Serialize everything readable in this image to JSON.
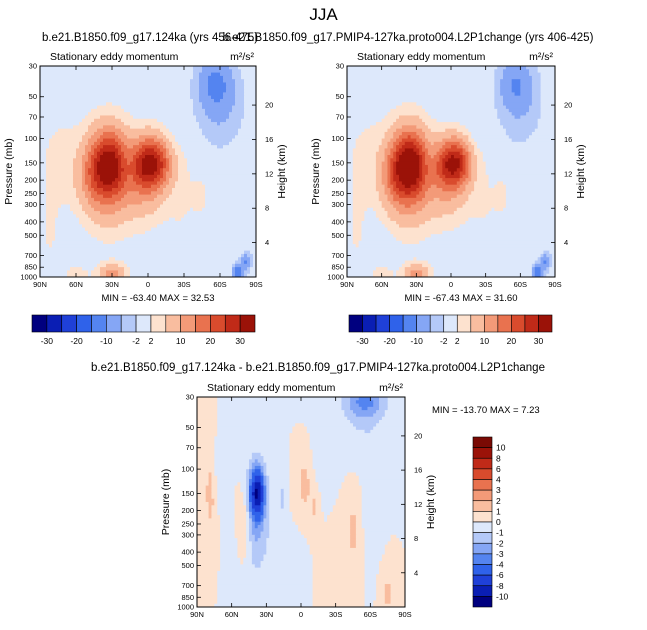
{
  "figure": {
    "main_title": "JJA",
    "panel_titles": [
      "b.e21.B1850.f09_g17.124ka (yrs 456-475)",
      "b.e21.B1850.f09_g17.PMIP4-127ka.proto004.L2P1change (yrs 406-425)",
      "b.e21.B1850.f09_g17.124ka - b.e21.B1850.f09_g17.PMIP4-127ka.proto004.L2P1change"
    ],
    "variable_label": "Stationary eddy momentum",
    "units": "m²/s²"
  },
  "colorbars": {
    "main": {
      "levels": [
        -30,
        -25,
        -20,
        -15,
        -10,
        -5,
        -2,
        2,
        5,
        10,
        15,
        20,
        25,
        30
      ],
      "tick_labels": [
        "-30",
        "-20",
        "-10",
        "-2",
        "2",
        "10",
        "20",
        "30"
      ],
      "colors": [
        "#00007f",
        "#0a1eb4",
        "#1f40d8",
        "#2f62ea",
        "#5484f0",
        "#85a6f5",
        "#b4c9f8",
        "#dde8fb",
        "#fde2cf",
        "#f9bd9f",
        "#f39a78",
        "#e9724f",
        "#d94b2d",
        "#c02a18",
        "#9b1208"
      ]
    },
    "diff": {
      "levels": [
        -10,
        -8,
        -6,
        -4,
        -3,
        -2,
        -1,
        0,
        1,
        2,
        3,
        4,
        6,
        8,
        10
      ],
      "tick_labels": [
        "10",
        "8",
        "6",
        "4",
        "3",
        "2",
        "1",
        "0",
        "-1",
        "-2",
        "-3",
        "-4",
        "-6",
        "-8",
        "-10"
      ],
      "colors": [
        "#00007f",
        "#0a1eb4",
        "#1f40d8",
        "#2f62ea",
        "#5484f0",
        "#85a6f5",
        "#b4c9f8",
        "#dde8fb",
        "#fde2cf",
        "#f9bd9f",
        "#f39a78",
        "#e9724f",
        "#d94b2d",
        "#c02a18",
        "#9b1208",
        "#7a0a04"
      ]
    }
  },
  "chart_data": [
    {
      "type": "heatmap",
      "title": "b.e21.B1850.f09_g17.124ka (yrs 456-475)",
      "subtitle": "Stationary eddy momentum",
      "units": "m²/s²",
      "xlabel": "",
      "ylabel": "Pressure (mb)",
      "y2label": "Height (km)",
      "x_ticks": [
        "90N",
        "60N",
        "30N",
        "0",
        "30S",
        "60S",
        "90S"
      ],
      "x_range": [
        90,
        -90
      ],
      "y_ticks": [
        30,
        50,
        70,
        100,
        150,
        200,
        250,
        300,
        400,
        500,
        700,
        850,
        1000
      ],
      "y_range": [
        1000,
        30
      ],
      "y2_ticks": [
        4,
        8,
        12,
        16,
        20
      ],
      "min": -63.4,
      "max": 32.53,
      "stats_text": "MIN = -63.40  MAX =  32.53",
      "colorbar": "main",
      "features": [
        {
          "lat": 33,
          "p": 150,
          "value": 22,
          "lat_w": 11,
          "p_w": 0.38
        },
        {
          "lat": 33,
          "p": 190,
          "value": 14,
          "lat_w": 13,
          "p_w": 0.55
        },
        {
          "lat": -3,
          "p": 150,
          "value": 28,
          "lat_w": 12,
          "p_w": 0.3
        },
        {
          "lat": 4,
          "p": 210,
          "value": 9,
          "lat_w": 13,
          "p_w": 0.45
        },
        {
          "lat": 48,
          "p": 200,
          "value": 6,
          "lat_w": 8,
          "p_w": 0.35
        },
        {
          "lat": 72,
          "p": 150,
          "value": 3,
          "lat_w": 14,
          "p_w": 0.6
        },
        {
          "lat": 30,
          "p": 950,
          "value": 12,
          "lat_w": 8,
          "p_w": 0.12
        },
        {
          "lat": 60,
          "p": 960,
          "value": 4,
          "lat_w": 7,
          "p_w": 0.1
        },
        {
          "lat": -56,
          "p": 40,
          "value": -9,
          "lat_w": 10,
          "p_w": 0.3
        },
        {
          "lat": -60,
          "p": 60,
          "value": -5,
          "lat_w": 14,
          "p_w": 0.5
        },
        {
          "lat": 16,
          "p": 150,
          "value": -5,
          "lat_w": 5,
          "p_w": 0.28
        },
        {
          "lat": -28,
          "p": 300,
          "value": 2,
          "lat_w": 10,
          "p_w": 0.5
        },
        {
          "lat": -45,
          "p": 250,
          "value": 2,
          "lat_w": 6,
          "p_w": 0.35
        },
        {
          "lat": 82,
          "p": 500,
          "value": 2,
          "lat_w": 6,
          "p_w": 0.5
        },
        {
          "lat": -75,
          "p": 920,
          "value": -14,
          "lat_w": 3,
          "p_w": 0.1
        },
        {
          "lat": -82,
          "p": 780,
          "value": -10,
          "lat_w": 3,
          "p_w": 0.1
        },
        {
          "lat": -20,
          "p": 130,
          "value": -2,
          "lat_w": 6,
          "p_w": 0.4
        },
        {
          "lat": -70,
          "p": 300,
          "value": 1,
          "lat_w": 8,
          "p_w": 0.6
        }
      ]
    },
    {
      "type": "heatmap",
      "title": "b.e21.B1850.f09_g17.PMIP4-127ka.proto004.L2P1change (yrs 406-425)",
      "subtitle": "Stationary eddy momentum",
      "units": "m²/s²",
      "xlabel": "",
      "ylabel": "Pressure (mb)",
      "y2label": "Height (km)",
      "x_ticks": [
        "90N",
        "60N",
        "30N",
        "0",
        "30S",
        "60S",
        "90S"
      ],
      "x_range": [
        90,
        -90
      ],
      "y_ticks": [
        30,
        50,
        70,
        100,
        150,
        200,
        250,
        300,
        400,
        500,
        700,
        850,
        1000
      ],
      "y_range": [
        1000,
        30
      ],
      "y2_ticks": [
        4,
        8,
        12,
        16,
        20
      ],
      "min": -67.43,
      "max": 31.6,
      "stats_text": "MIN = -67.43  MAX =  31.60",
      "colorbar": "main",
      "features": [
        {
          "lat": 36,
          "p": 150,
          "value": 24,
          "lat_w": 11,
          "p_w": 0.38
        },
        {
          "lat": 36,
          "p": 190,
          "value": 15,
          "lat_w": 13,
          "p_w": 0.55
        },
        {
          "lat": -3,
          "p": 150,
          "value": 27,
          "lat_w": 11,
          "p_w": 0.28
        },
        {
          "lat": 4,
          "p": 210,
          "value": 9,
          "lat_w": 13,
          "p_w": 0.45
        },
        {
          "lat": 50,
          "p": 200,
          "value": 6,
          "lat_w": 8,
          "p_w": 0.35
        },
        {
          "lat": 72,
          "p": 150,
          "value": 3,
          "lat_w": 14,
          "p_w": 0.6
        },
        {
          "lat": 30,
          "p": 950,
          "value": 12,
          "lat_w": 8,
          "p_w": 0.12
        },
        {
          "lat": 60,
          "p": 960,
          "value": 4,
          "lat_w": 7,
          "p_w": 0.1
        },
        {
          "lat": -56,
          "p": 40,
          "value": -8,
          "lat_w": 10,
          "p_w": 0.3
        },
        {
          "lat": -60,
          "p": 60,
          "value": -4,
          "lat_w": 14,
          "p_w": 0.5
        },
        {
          "lat": 18,
          "p": 150,
          "value": -3,
          "lat_w": 5,
          "p_w": 0.25
        },
        {
          "lat": -28,
          "p": 300,
          "value": 2,
          "lat_w": 10,
          "p_w": 0.5
        },
        {
          "lat": -45,
          "p": 250,
          "value": 2,
          "lat_w": 6,
          "p_w": 0.35
        },
        {
          "lat": 82,
          "p": 500,
          "value": 2,
          "lat_w": 6,
          "p_w": 0.5
        },
        {
          "lat": -75,
          "p": 920,
          "value": -14,
          "lat_w": 3,
          "p_w": 0.1
        },
        {
          "lat": -82,
          "p": 780,
          "value": -10,
          "lat_w": 3,
          "p_w": 0.1
        },
        {
          "lat": -20,
          "p": 130,
          "value": -2,
          "lat_w": 6,
          "p_w": 0.4
        },
        {
          "lat": -70,
          "p": 300,
          "value": 1,
          "lat_w": 8,
          "p_w": 0.6
        }
      ]
    },
    {
      "type": "heatmap",
      "title": "b.e21.B1850.f09_g17.124ka - b.e21.B1850.f09_g17.PMIP4-127ka.proto004.L2P1change",
      "subtitle": "Stationary eddy momentum",
      "units": "m²/s²",
      "xlabel": "",
      "ylabel": "Pressure (mb)",
      "y2label": "Height (km)",
      "x_ticks": [
        "90N",
        "60N",
        "30N",
        "0",
        "30S",
        "60S",
        "90S"
      ],
      "x_range": [
        90,
        -90
      ],
      "y_ticks": [
        30,
        50,
        70,
        100,
        150,
        200,
        250,
        300,
        400,
        500,
        700,
        850,
        1000
      ],
      "y_range": [
        1000,
        30
      ],
      "y2_ticks": [
        4,
        8,
        12,
        16,
        20
      ],
      "min": -13.7,
      "max": 7.23,
      "stats_text": "MIN = -13.70  MAX =  7.23",
      "colorbar": "diff",
      "features": [
        {
          "lat": 38,
          "p": 150,
          "value": -8,
          "lat_w": 4,
          "p_w": 0.25
        },
        {
          "lat": 38,
          "p": 170,
          "value": -2,
          "lat_w": 6.5,
          "p_w": 0.55
        },
        {
          "lat": 38,
          "p": 300,
          "value": -1,
          "lat_w": 6,
          "p_w": 0.8
        },
        {
          "lat": -55,
          "p": 32,
          "value": -2.5,
          "lat_w": 11,
          "p_w": 0.18
        },
        {
          "lat": -55,
          "p": 40,
          "value": -1.2,
          "lat_w": 16,
          "p_w": 0.4
        },
        {
          "lat": 17,
          "p": 160,
          "value": -1.2,
          "lat_w": 2.5,
          "p_w": 0.3
        },
        {
          "lat": 72,
          "p": 120,
          "value": -0.8,
          "lat_w": 4,
          "p_w": 0.4
        },
        {
          "lat": -3,
          "p": 130,
          "value": 1.5,
          "lat_w": 4,
          "p_w": 0.3
        },
        {
          "lat": -12,
          "p": 190,
          "value": 1.2,
          "lat_w": 3,
          "p_w": 0.25
        },
        {
          "lat": 50,
          "p": 250,
          "value": 1.2,
          "lat_w": 4,
          "p_w": 0.35
        },
        {
          "lat": -45,
          "p": 280,
          "value": 1.3,
          "lat_w": 4,
          "p_w": 0.4
        },
        {
          "lat": 78,
          "p": 150,
          "value": 1.5,
          "lat_w": 4,
          "p_w": 0.5
        },
        {
          "lat": -20,
          "p": 90,
          "value": -0.9,
          "lat_w": 5,
          "p_w": 0.4
        },
        {
          "lat": -75,
          "p": 800,
          "value": 1.5,
          "lat_w": 3,
          "p_w": 0.2
        },
        {
          "lat": 25,
          "p": 500,
          "value": -0.7,
          "lat_w": 4,
          "p_w": 0.5
        },
        {
          "lat": -30,
          "p": 600,
          "value": 0.7,
          "lat_w": 6,
          "p_w": 0.5
        },
        {
          "lat": 60,
          "p": 550,
          "value": -0.6,
          "lat_w": 4,
          "p_w": 0.6
        },
        {
          "lat": 5,
          "p": 700,
          "value": -0.6,
          "lat_w": 5,
          "p_w": 0.4
        },
        {
          "lat": -60,
          "p": 160,
          "value": -0.7,
          "lat_w": 4,
          "p_w": 0.5
        },
        {
          "lat": 88,
          "p": 35,
          "value": 0.8,
          "lat_w": 3,
          "p_w": 0.4
        }
      ]
    }
  ]
}
